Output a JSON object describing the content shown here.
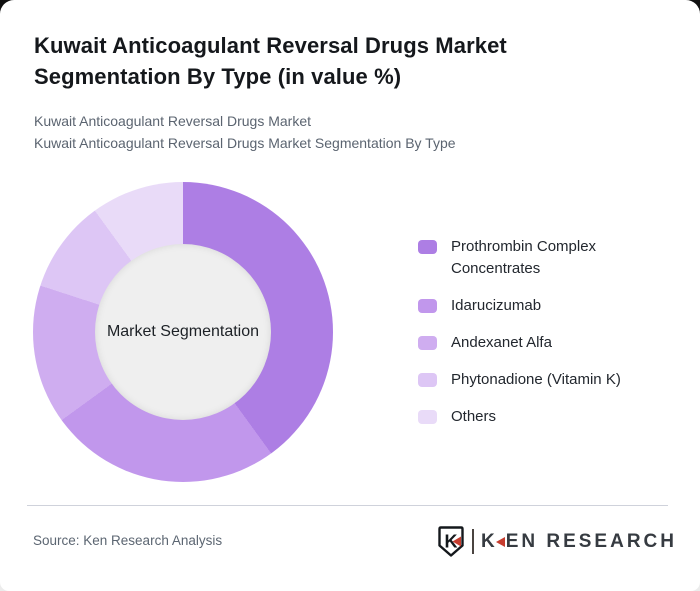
{
  "header": {
    "title": "Kuwait Anticoagulant Reversal Drugs Market Segmentation By Type (in value %)",
    "subtitle_line1": "Kuwait Anticoagulant Reversal Drugs Market",
    "subtitle_line2": "Kuwait Anticoagulant Reversal Drugs Market Segmentation By Type"
  },
  "chart_data": {
    "type": "pie",
    "donut": true,
    "title": "Kuwait Anticoagulant Reversal Drugs Market Segmentation By Type (in value %)",
    "units": "value %",
    "start_angle_deg": 0,
    "direction": "clockwise",
    "legend_position": "right",
    "center_label": "Market Segmentation",
    "center_circle_color": "#efefef",
    "segments": [
      {
        "label": "Prothrombin Complex Concentrates",
        "value": 40,
        "color": "#ad7ee4"
      },
      {
        "label": "Idarucizumab",
        "value": 25,
        "color": "#c197ec"
      },
      {
        "label": "Andexanet Alfa",
        "value": 15,
        "color": "#cfadf0"
      },
      {
        "label": "Phytonadione (Vitamin K)",
        "value": 10,
        "color": "#ddc6f5"
      },
      {
        "label": "Others",
        "value": 10,
        "color": "#e9dbf8"
      }
    ]
  },
  "footer": {
    "source": "Source: Ken Research Analysis",
    "brand": {
      "shield_letter": "K",
      "name_first_letter": "K",
      "name_rest": "EN RESEARCH",
      "accent_color": "#c63d2f"
    }
  }
}
